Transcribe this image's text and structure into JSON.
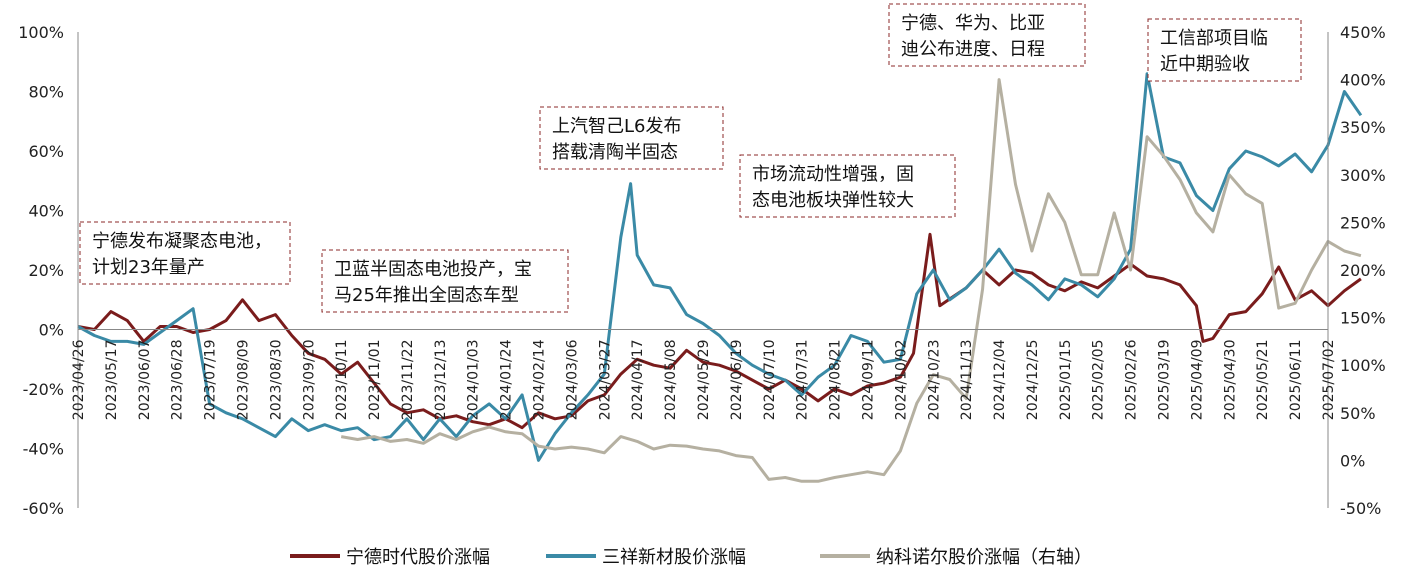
{
  "chart_data": {
    "type": "line",
    "title": "",
    "xlabel": "",
    "ylabel": "",
    "ylim": [
      -60,
      100
    ],
    "y2lim": [
      -50,
      450
    ],
    "y_ticks": [
      "100%",
      "80%",
      "60%",
      "40%",
      "20%",
      "0%",
      "-20%",
      "-40%",
      "-60%"
    ],
    "y2_ticks": [
      "450%",
      "400%",
      "350%",
      "300%",
      "250%",
      "200%",
      "150%",
      "100%",
      "50%",
      "0%",
      "-50%"
    ],
    "x_ticks": [
      "2023/04/26",
      "2023/05/17",
      "2023/06/07",
      "2023/06/28",
      "2023/07/19",
      "2023/08/09",
      "2023/08/30",
      "2023/09/20",
      "2023/10/11",
      "2023/11/01",
      "2023/11/22",
      "2023/12/13",
      "2024/01/03",
      "2024/01/24",
      "2024/02/14",
      "2024/03/06",
      "2024/03/27",
      "2024/04/17",
      "2024/05/08",
      "2024/05/29",
      "2024/06/19",
      "2024/07/10",
      "2024/07/31",
      "2024/08/21",
      "2024/09/11",
      "2024/10/02",
      "2024/10/23",
      "2024/11/13",
      "2024/12/04",
      "2024/12/25",
      "2025/01/15",
      "2025/02/05",
      "2025/02/26",
      "2025/03/19",
      "2025/04/09",
      "2025/04/30",
      "2025/05/21",
      "2025/06/11",
      "2025/07/02"
    ],
    "grid": false,
    "legend_position": "bottom",
    "series": [
      {
        "name": "宁德时代股价涨幅",
        "color": "#7a1c1c",
        "axis": "left",
        "points": [
          [
            0,
            1
          ],
          [
            0.5,
            0
          ],
          [
            1,
            6
          ],
          [
            1.5,
            3
          ],
          [
            2,
            -4
          ],
          [
            2.5,
            1
          ],
          [
            3,
            1
          ],
          [
            3.5,
            -1
          ],
          [
            4,
            0
          ],
          [
            4.5,
            3
          ],
          [
            5,
            10
          ],
          [
            5.5,
            3
          ],
          [
            6,
            5
          ],
          [
            6.5,
            -2
          ],
          [
            7,
            -8
          ],
          [
            7.5,
            -10
          ],
          [
            8,
            -15
          ],
          [
            8.5,
            -11
          ],
          [
            9,
            -18
          ],
          [
            9.5,
            -25
          ],
          [
            10,
            -28
          ],
          [
            10.5,
            -27
          ],
          [
            11,
            -30
          ],
          [
            11.5,
            -29
          ],
          [
            12,
            -31
          ],
          [
            12.5,
            -32
          ],
          [
            13,
            -30
          ],
          [
            13.5,
            -33
          ],
          [
            14,
            -28
          ],
          [
            14.5,
            -30
          ],
          [
            15,
            -29
          ],
          [
            15.5,
            -24
          ],
          [
            16,
            -22
          ],
          [
            16.5,
            -15
          ],
          [
            17,
            -10
          ],
          [
            17.5,
            -12
          ],
          [
            18,
            -13
          ],
          [
            18.5,
            -7
          ],
          [
            19,
            -11
          ],
          [
            19.5,
            -12
          ],
          [
            20,
            -14
          ],
          [
            20.5,
            -17
          ],
          [
            21,
            -20
          ],
          [
            21.5,
            -17
          ],
          [
            22,
            -20
          ],
          [
            22.5,
            -24
          ],
          [
            23,
            -20
          ],
          [
            23.5,
            -22
          ],
          [
            24,
            -19
          ],
          [
            24.5,
            -18
          ],
          [
            25,
            -16
          ],
          [
            25.4,
            -8
          ],
          [
            25.9,
            32
          ],
          [
            26.2,
            8
          ],
          [
            26.6,
            11
          ],
          [
            27,
            14
          ],
          [
            27.5,
            20
          ],
          [
            28,
            15
          ],
          [
            28.5,
            20
          ],
          [
            29,
            19
          ],
          [
            29.5,
            15
          ],
          [
            30,
            13
          ],
          [
            30.5,
            16
          ],
          [
            31,
            14
          ],
          [
            31.5,
            18
          ],
          [
            32,
            22
          ],
          [
            32.5,
            18
          ],
          [
            33,
            17
          ],
          [
            33.5,
            15
          ],
          [
            34,
            8
          ],
          [
            34.2,
            -4
          ],
          [
            34.5,
            -3
          ],
          [
            35,
            5
          ],
          [
            35.5,
            6
          ],
          [
            36,
            12
          ],
          [
            36.5,
            21
          ],
          [
            37,
            10
          ],
          [
            37.5,
            13
          ],
          [
            38,
            8
          ],
          [
            38.5,
            13
          ],
          [
            39,
            17
          ]
        ]
      },
      {
        "name": "三祥新材股价涨幅",
        "color": "#3a8aa6",
        "axis": "left",
        "points": [
          [
            0,
            1
          ],
          [
            0.5,
            -2
          ],
          [
            1,
            -4
          ],
          [
            1.5,
            -4
          ],
          [
            2,
            -5
          ],
          [
            2.5,
            -1
          ],
          [
            3,
            3
          ],
          [
            3.5,
            7
          ],
          [
            4,
            -25
          ],
          [
            4.5,
            -28
          ],
          [
            5,
            -30
          ],
          [
            5.5,
            -33
          ],
          [
            6,
            -36
          ],
          [
            6.5,
            -30
          ],
          [
            7,
            -34
          ],
          [
            7.5,
            -32
          ],
          [
            8,
            -34
          ],
          [
            8.5,
            -33
          ],
          [
            9,
            -37
          ],
          [
            9.5,
            -36
          ],
          [
            10,
            -30
          ],
          [
            10.5,
            -37
          ],
          [
            11,
            -30
          ],
          [
            11.5,
            -36
          ],
          [
            12,
            -29
          ],
          [
            12.5,
            -25
          ],
          [
            13,
            -30
          ],
          [
            13.5,
            -22
          ],
          [
            14,
            -44
          ],
          [
            14.5,
            -35
          ],
          [
            15,
            -28
          ],
          [
            15.5,
            -22
          ],
          [
            16,
            -15
          ],
          [
            16.5,
            31
          ],
          [
            16.8,
            49
          ],
          [
            17,
            25
          ],
          [
            17.5,
            15
          ],
          [
            18,
            14
          ],
          [
            18.5,
            5
          ],
          [
            19,
            2
          ],
          [
            19.5,
            -2
          ],
          [
            20,
            -8
          ],
          [
            20.5,
            -12
          ],
          [
            21,
            -15
          ],
          [
            21.5,
            -17
          ],
          [
            22,
            -22
          ],
          [
            22.5,
            -16
          ],
          [
            23,
            -12
          ],
          [
            23.5,
            -2
          ],
          [
            24,
            -4
          ],
          [
            24.5,
            -11
          ],
          [
            25,
            -10
          ],
          [
            25.5,
            12
          ],
          [
            26,
            20
          ],
          [
            26.5,
            10
          ],
          [
            27,
            14
          ],
          [
            27.5,
            20
          ],
          [
            28,
            27
          ],
          [
            28.5,
            19
          ],
          [
            29,
            15
          ],
          [
            29.5,
            10
          ],
          [
            30,
            17
          ],
          [
            30.5,
            15
          ],
          [
            31,
            11
          ],
          [
            31.5,
            17
          ],
          [
            32,
            27
          ],
          [
            32.5,
            86
          ],
          [
            33,
            58
          ],
          [
            33.5,
            56
          ],
          [
            34,
            45
          ],
          [
            34.5,
            40
          ],
          [
            35,
            54
          ],
          [
            35.5,
            60
          ],
          [
            36,
            58
          ],
          [
            36.5,
            55
          ],
          [
            37,
            59
          ],
          [
            37.5,
            53
          ],
          [
            38,
            62
          ],
          [
            38.5,
            80
          ],
          [
            39,
            72
          ]
        ]
      },
      {
        "name": "纳科诺尔股价涨幅（右轴）",
        "color": "#b5b0a1",
        "axis": "right",
        "points": [
          [
            8,
            25
          ],
          [
            8.5,
            22
          ],
          [
            9,
            25
          ],
          [
            9.5,
            20
          ],
          [
            10,
            22
          ],
          [
            10.5,
            18
          ],
          [
            11,
            28
          ],
          [
            11.5,
            22
          ],
          [
            12,
            30
          ],
          [
            12.5,
            35
          ],
          [
            13,
            30
          ],
          [
            13.5,
            28
          ],
          [
            14,
            15
          ],
          [
            14.5,
            12
          ],
          [
            15,
            14
          ],
          [
            15.5,
            12
          ],
          [
            16,
            8
          ],
          [
            16.5,
            25
          ],
          [
            17,
            20
          ],
          [
            17.5,
            12
          ],
          [
            18,
            16
          ],
          [
            18.5,
            15
          ],
          [
            19,
            12
          ],
          [
            19.5,
            10
          ],
          [
            20,
            5
          ],
          [
            20.5,
            3
          ],
          [
            21,
            -20
          ],
          [
            21.5,
            -18
          ],
          [
            22,
            -22
          ],
          [
            22.5,
            -22
          ],
          [
            23,
            -18
          ],
          [
            23.5,
            -15
          ],
          [
            24,
            -12
          ],
          [
            24.5,
            -15
          ],
          [
            25,
            10
          ],
          [
            25.5,
            60
          ],
          [
            26,
            90
          ],
          [
            26.5,
            85
          ],
          [
            27,
            65
          ],
          [
            27.5,
            180
          ],
          [
            28,
            400
          ],
          [
            28.5,
            290
          ],
          [
            29,
            220
          ],
          [
            29.5,
            280
          ],
          [
            30,
            250
          ],
          [
            30.5,
            195
          ],
          [
            31,
            195
          ],
          [
            31.5,
            260
          ],
          [
            32,
            200
          ],
          [
            32.5,
            340
          ],
          [
            33,
            320
          ],
          [
            33.5,
            295
          ],
          [
            34,
            260
          ],
          [
            34.5,
            240
          ],
          [
            35,
            300
          ],
          [
            35.5,
            280
          ],
          [
            36,
            270
          ],
          [
            36.5,
            160
          ],
          [
            37,
            165
          ],
          [
            37.5,
            200
          ],
          [
            38,
            230
          ],
          [
            38.5,
            220
          ],
          [
            39,
            215
          ]
        ]
      }
    ],
    "annotations": [
      {
        "lines": [
          "宁德发布凝聚态电池，",
          "计划23年量产"
        ]
      },
      {
        "lines": [
          "卫蓝半固态电池投产，宝",
          "马25年推出全固态车型"
        ]
      },
      {
        "lines": [
          "上汽智己L6发布",
          "搭载清陶半固态"
        ]
      },
      {
        "lines": [
          "市场流动性增强，固",
          "态电池板块弹性较大"
        ]
      },
      {
        "lines": [
          "宁德、华为、比亚",
          "迪公布进度、日程"
        ]
      },
      {
        "lines": [
          "工信部项目临",
          "近中期验收"
        ]
      }
    ]
  }
}
